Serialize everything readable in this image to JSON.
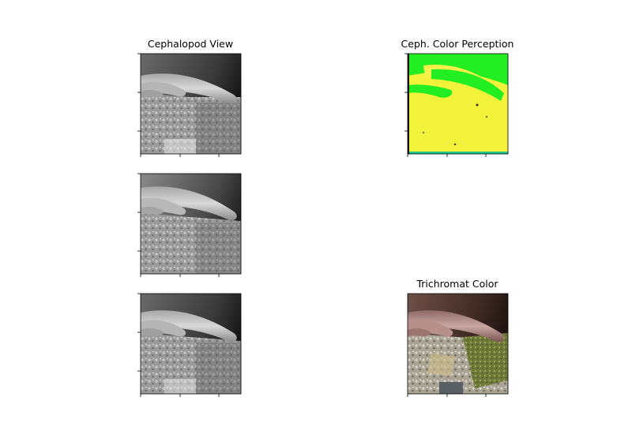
{
  "figure": {
    "panels": [
      {
        "id": "top-left",
        "title": "Cephalopod View",
        "variant": "gray-dark"
      },
      {
        "id": "top-right",
        "title": "Ceph. Color Perception",
        "variant": "green-yellow"
      },
      {
        "id": "mid-left",
        "title": "",
        "variant": "gray-light"
      },
      {
        "id": "bottom-left",
        "title": "",
        "variant": "gray-dark"
      },
      {
        "id": "bottom-right",
        "title": "Trichromat Color",
        "variant": "color"
      }
    ]
  }
}
